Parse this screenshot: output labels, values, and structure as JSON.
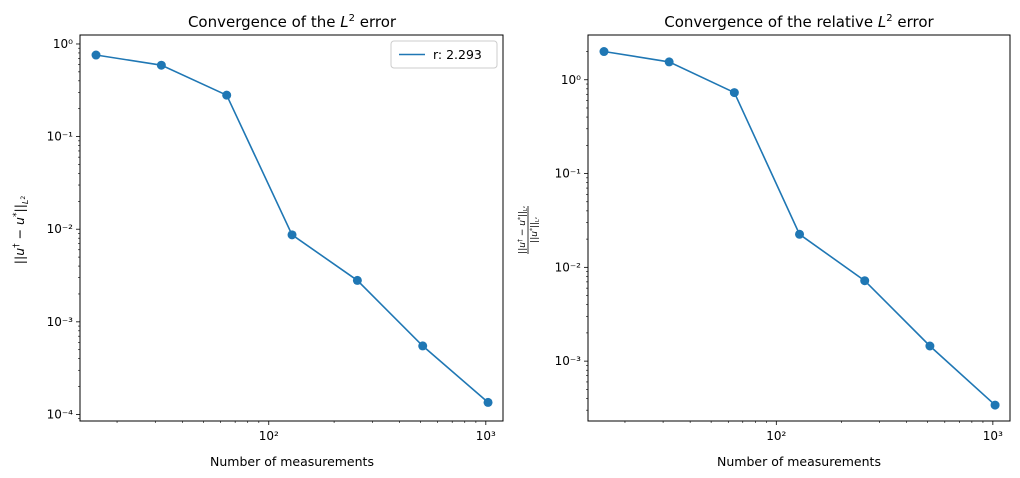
{
  "chart_data": [
    {
      "type": "line",
      "title": "Convergence of the L² error",
      "xlabel": "Number of measurements",
      "ylabel": "||u† − u*||L²",
      "xscale": "log",
      "yscale": "log",
      "xlim": [
        13.5,
        1200
      ],
      "ylim": [
        8.5e-05,
        1.25
      ],
      "xticks": [
        {
          "value": 100,
          "label": "10²"
        },
        {
          "value": 1000,
          "label": "10³"
        }
      ],
      "yticks": [
        {
          "value": 0.0001,
          "label": "10⁻⁴"
        },
        {
          "value": 0.001,
          "label": "10⁻³"
        },
        {
          "value": 0.01,
          "label": "10⁻²"
        },
        {
          "value": 0.1,
          "label": "10⁻¹"
        },
        {
          "value": 1,
          "label": "10⁰"
        }
      ],
      "legend": {
        "position": "top-right",
        "entries": [
          "r: 2.293"
        ]
      },
      "grid": false,
      "series": [
        {
          "name": "r: 2.293",
          "color": "#1f77b4",
          "x": [
            16,
            32,
            64,
            128,
            256,
            512,
            1024
          ],
          "y": [
            0.76,
            0.59,
            0.28,
            0.0087,
            0.0028,
            0.00055,
            0.000135
          ]
        }
      ]
    },
    {
      "type": "line",
      "title": "Convergence of the relative L² error",
      "xlabel": "Number of measurements",
      "ylabel": "||u† − u*||L² / ||u*||L²",
      "xscale": "log",
      "yscale": "log",
      "xlim": [
        13.5,
        1200
      ],
      "ylim": [
        0.00023,
        3.0
      ],
      "xticks": [
        {
          "value": 100,
          "label": "10²"
        },
        {
          "value": 1000,
          "label": "10³"
        }
      ],
      "yticks": [
        {
          "value": 0.001,
          "label": "10⁻³"
        },
        {
          "value": 0.01,
          "label": "10⁻²"
        },
        {
          "value": 0.1,
          "label": "10⁻¹"
        },
        {
          "value": 1,
          "label": "10⁰"
        }
      ],
      "grid": false,
      "series": [
        {
          "color": "#1f77b4",
          "x": [
            16,
            32,
            64,
            128,
            256,
            512,
            1024
          ],
          "y": [
            2.0,
            1.55,
            0.73,
            0.0225,
            0.0072,
            0.00145,
            0.00034
          ]
        }
      ]
    }
  ]
}
